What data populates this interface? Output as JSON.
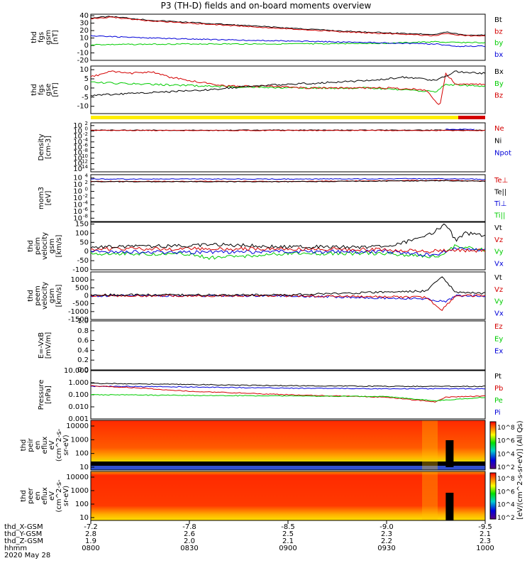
{
  "title": "P3 (TH-D) fields and on-board moments overview",
  "colors": {
    "black": "#000000",
    "red": "#d40000",
    "green": "#00cc00",
    "blue": "#0000d8",
    "yellow": "#ffee00",
    "white": "#ffffff"
  },
  "time_axis": {
    "ticks": [
      "0800",
      "0830",
      "0900",
      "0930",
      "1000"
    ],
    "range_hours": [
      8.0,
      10.0
    ]
  },
  "ephemeris": {
    "labels": [
      "thd_X-GSM",
      "thd_Y-GSM",
      "thd_Z-GSM",
      "hhmm",
      "2020 May 28"
    ],
    "rows": [
      [
        "-7.2",
        "-7.8",
        "-8.5",
        "-9.0",
        "-9.5"
      ],
      [
        "2.8",
        "2.6",
        "2.5",
        "2.3",
        "2.1"
      ],
      [
        "1.9",
        "2.0",
        "2.1",
        "2.2",
        "2.3"
      ]
    ]
  },
  "chart_data": [
    {
      "type": "line",
      "ylabel": [
        "thd",
        "fgs",
        "gsm",
        "[nT]"
      ],
      "ylim": [
        -20,
        42
      ],
      "yticks": [
        "40",
        "30",
        "20",
        "10",
        "0",
        "-10",
        "-20"
      ],
      "legend": [
        {
          "name": "Bt",
          "color": "#000000"
        },
        {
          "name": "bz",
          "color": "#d40000"
        },
        {
          "name": "by",
          "color": "#00cc00"
        },
        {
          "name": "bx",
          "color": "#0000d8"
        }
      ],
      "series": [
        {
          "name": "Bt",
          "color": "#000000",
          "x": [
            8.0,
            8.1,
            8.3,
            8.5,
            8.7,
            8.9,
            9.1,
            9.3,
            9.5,
            9.6,
            9.75,
            9.8,
            9.9,
            10.0
          ],
          "y": [
            37,
            39,
            34,
            31,
            28,
            25,
            22,
            19,
            17,
            16,
            15,
            18,
            14,
            14
          ]
        },
        {
          "name": "bz",
          "color": "#d40000",
          "x": [
            8.0,
            8.1,
            8.3,
            8.5,
            8.7,
            8.9,
            9.1,
            9.3,
            9.5,
            9.6,
            9.75,
            9.8,
            9.9,
            10.0
          ],
          "y": [
            36,
            38,
            33,
            30,
            27,
            24,
            21,
            18,
            16,
            15,
            13,
            16,
            13,
            13
          ]
        },
        {
          "name": "by",
          "color": "#00cc00",
          "x": [
            8.0,
            8.5,
            9.0,
            9.5,
            9.75,
            9.8,
            10.0
          ],
          "y": [
            1,
            2,
            2,
            3,
            5,
            4,
            4
          ]
        },
        {
          "name": "bx",
          "color": "#0000d8",
          "x": [
            8.0,
            8.3,
            8.6,
            9.0,
            9.4,
            9.75,
            9.85,
            10.0
          ],
          "y": [
            13,
            10,
            8,
            6,
            4,
            2,
            -1,
            -1
          ]
        }
      ]
    },
    {
      "type": "line",
      "ylabel": [
        "thd",
        "fgs",
        "gse",
        "[nT]"
      ],
      "ylim": [
        -14,
        12
      ],
      "yticks": [
        "10",
        "5",
        "0",
        "-5",
        "-10"
      ],
      "legend": [
        {
          "name": "Bx",
          "color": "#000000"
        },
        {
          "name": "By",
          "color": "#00cc00"
        },
        {
          "name": "Bz",
          "color": "#d40000"
        }
      ],
      "series": [
        {
          "name": "By",
          "color": "#00cc00",
          "x": [
            8.0,
            8.3,
            8.6,
            9.0,
            9.4,
            9.75,
            9.8,
            10.0
          ],
          "y": [
            3,
            2,
            1,
            0,
            0,
            -2,
            2,
            1
          ]
        },
        {
          "name": "Bz",
          "color": "#d40000",
          "x": [
            8.0,
            8.1,
            8.2,
            8.3,
            8.4,
            8.5,
            8.7,
            8.9,
            9.1,
            9.3,
            9.5,
            9.7,
            9.77,
            9.8,
            9.85,
            10.0
          ],
          "y": [
            6,
            9,
            8,
            9,
            6,
            4,
            1,
            1,
            0,
            0,
            0,
            -1,
            -10,
            8,
            2,
            2
          ]
        },
        {
          "name": "Bx",
          "color": "#000000",
          "x": [
            8.0,
            8.2,
            8.4,
            8.6,
            8.8,
            9.0,
            9.2,
            9.4,
            9.6,
            9.75,
            9.85,
            10.0
          ],
          "y": [
            -4,
            -3,
            -2,
            -1,
            1,
            2,
            3,
            4,
            6,
            4,
            9,
            8
          ]
        }
      ]
    },
    {
      "type": "line",
      "ylabel": [
        "Density",
        "[cm-3]"
      ],
      "ylim_log10": [
        -15,
        3
      ],
      "ytick_exponents": [
        "2",
        "0",
        "-2",
        "-4",
        "-6",
        "-8",
        "-10",
        "-12",
        "-14"
      ],
      "legend": [
        {
          "name": "Ne",
          "color": "#d40000"
        },
        {
          "name": "Ni",
          "color": "#000000"
        },
        {
          "name": "Npot",
          "color": "#0000d8"
        }
      ],
      "series": [
        {
          "name": "Ni",
          "color": "#000000",
          "x": [
            8.0,
            10.0
          ],
          "y_log10": [
            0.3,
            0.3
          ]
        },
        {
          "name": "Ne",
          "color": "#d40000",
          "x": [
            8.0,
            10.0
          ],
          "y_log10": [
            0.2,
            0.2
          ]
        },
        {
          "name": "Npot",
          "color": "#0000d8",
          "x": [
            9.8,
            9.95
          ],
          "y_log10": [
            0.6,
            0.6
          ]
        }
      ]
    },
    {
      "type": "line",
      "ylabel": [
        "mom3",
        "[eV]"
      ],
      "ylim_log10": [
        -9,
        5
      ],
      "ytick_exponents": [
        "4",
        "2",
        "0",
        "-2",
        "-4",
        "-6",
        "-8"
      ],
      "legend": [
        {
          "name": "Te⊥",
          "color": "#d40000"
        },
        {
          "name": "Te||",
          "color": "#000000"
        },
        {
          "name": "Ti⊥",
          "color": "#0000d8"
        },
        {
          "name": "Ti||",
          "color": "#00cc00"
        }
      ],
      "series": [
        {
          "name": "Ti⊥",
          "color": "#0000d8",
          "x": [
            8.0,
            9.0,
            9.8,
            10.0
          ],
          "y_log10": [
            3.7,
            3.7,
            3.8,
            3.6
          ]
        },
        {
          "name": "Te⊥",
          "color": "#d40000",
          "x": [
            8.0,
            9.0,
            9.8,
            10.0
          ],
          "y_log10": [
            3.0,
            3.0,
            3.3,
            3.1
          ]
        },
        {
          "name": "Te||",
          "color": "#000000",
          "x": [
            8.0,
            9.0,
            9.8,
            10.0
          ],
          "y_log10": [
            2.9,
            2.9,
            3.2,
            3.0
          ]
        }
      ]
    },
    {
      "type": "line",
      "ylabel": [
        "thd",
        "peim",
        "velocity",
        "gsm",
        "[km/s]"
      ],
      "ylim": [
        -100,
        160
      ],
      "yticks": [
        "150",
        "100",
        "50",
        "0",
        "-50",
        "-100"
      ],
      "legend": [
        {
          "name": "Vt",
          "color": "#000000"
        },
        {
          "name": "Vz",
          "color": "#d40000"
        },
        {
          "name": "Vy",
          "color": "#00cc00"
        },
        {
          "name": "Vx",
          "color": "#0000d8"
        }
      ],
      "series": [
        {
          "name": "Vy",
          "color": "#00cc00",
          "x": [
            8.0,
            8.5,
            8.6,
            9.0,
            9.5,
            9.75,
            9.85,
            10.0
          ],
          "y": [
            -10,
            -15,
            -35,
            -10,
            -10,
            -30,
            30,
            10
          ]
        },
        {
          "name": "Vx",
          "color": "#0000d8",
          "x": [
            8.0,
            8.5,
            9.0,
            9.5,
            9.75,
            9.85,
            10.0
          ],
          "y": [
            0,
            -5,
            0,
            0,
            -20,
            20,
            10
          ]
        },
        {
          "name": "Vz",
          "color": "#d40000",
          "x": [
            8.0,
            8.5,
            9.0,
            9.5,
            9.7,
            9.8,
            10.0
          ],
          "y": [
            15,
            15,
            15,
            10,
            0,
            5,
            5
          ]
        },
        {
          "name": "Vt",
          "color": "#000000",
          "x": [
            8.0,
            8.5,
            8.6,
            9.0,
            9.5,
            9.7,
            9.8,
            9.85,
            9.9,
            10.0
          ],
          "y": [
            25,
            30,
            40,
            25,
            25,
            80,
            150,
            60,
            100,
            90
          ]
        }
      ]
    },
    {
      "type": "line",
      "ylabel": [
        "thd",
        "peem",
        "velocity",
        "gsm",
        "[km/s]"
      ],
      "ylim": [
        -1500,
        1500
      ],
      "yticks": [
        "1000",
        "500",
        "0",
        "-500",
        "-1000",
        "-1500"
      ],
      "legend": [
        {
          "name": "Vt",
          "color": "#000000"
        },
        {
          "name": "Vz",
          "color": "#d40000"
        },
        {
          "name": "Vy",
          "color": "#00cc00"
        },
        {
          "name": "Vx",
          "color": "#0000d8"
        }
      ],
      "series": [
        {
          "name": "Vx",
          "color": "#0000d8",
          "x": [
            8.0,
            9.0,
            9.7,
            9.8,
            9.85,
            10.0
          ],
          "y": [
            0,
            0,
            -200,
            -400,
            0,
            0
          ]
        },
        {
          "name": "Vz",
          "color": "#d40000",
          "x": [
            8.0,
            9.0,
            9.7,
            9.78,
            9.85,
            10.0
          ],
          "y": [
            0,
            0,
            -100,
            -900,
            0,
            0
          ]
        },
        {
          "name": "Vt",
          "color": "#000000",
          "x": [
            8.0,
            9.0,
            9.7,
            9.78,
            9.85,
            10.0
          ],
          "y": [
            50,
            50,
            300,
            1200,
            200,
            150
          ]
        }
      ]
    },
    {
      "type": "line",
      "ylabel": [
        "E=-VxB",
        "[mV/m]"
      ],
      "ylim": [
        0,
        1
      ],
      "yticks": [
        "1.0",
        "0.8",
        "0.6",
        "0.4",
        "0.2",
        "0.0"
      ],
      "legend": [
        {
          "name": "Ez",
          "color": "#d40000"
        },
        {
          "name": "Ey",
          "color": "#00cc00"
        },
        {
          "name": "Ex",
          "color": "#0000d8"
        }
      ],
      "series": []
    },
    {
      "type": "line",
      "ylabel": [
        "Pressure",
        "[nPa]"
      ],
      "ylim_log10": [
        -3,
        1
      ],
      "yticks": [
        "10.000",
        "1.000",
        "0.100",
        "0.010",
        "0.001"
      ],
      "legend": [
        {
          "name": "Pt",
          "color": "#000000"
        },
        {
          "name": "Pb",
          "color": "#d40000"
        },
        {
          "name": "Pe",
          "color": "#00cc00"
        },
        {
          "name": "Pi",
          "color": "#0000d8"
        }
      ],
      "series": [
        {
          "name": "Pt",
          "color": "#000000",
          "x": [
            8.0,
            8.5,
            9.0,
            9.5,
            10.0
          ],
          "y_log10": [
            -0.05,
            -0.15,
            -0.25,
            -0.3,
            -0.3
          ]
        },
        {
          "name": "Pi",
          "color": "#0000d8",
          "x": [
            8.0,
            8.5,
            9.0,
            9.5,
            10.0
          ],
          "y_log10": [
            -0.3,
            -0.35,
            -0.45,
            -0.5,
            -0.5
          ]
        },
        {
          "name": "Pb",
          "color": "#d40000",
          "x": [
            8.0,
            8.2,
            8.5,
            9.0,
            9.5,
            9.75,
            9.8,
            10.0
          ],
          "y_log10": [
            -0.25,
            -0.4,
            -0.7,
            -1.0,
            -1.2,
            -1.6,
            -1.2,
            -1.1
          ]
        },
        {
          "name": "Pe",
          "color": "#00cc00",
          "x": [
            8.0,
            8.5,
            9.0,
            9.5,
            9.75,
            10.0
          ],
          "y_log10": [
            -1.0,
            -1.05,
            -1.1,
            -1.15,
            -1.5,
            -1.2
          ]
        }
      ]
    },
    {
      "type": "heatmap",
      "ylabel": [
        "thd",
        "peir",
        "en",
        "eflux",
        "eV",
        "(cm^2-s-",
        "sr-eV)"
      ],
      "yticks": [
        "10000",
        "1000",
        "100",
        "10"
      ],
      "colorbar_ticks": [
        "10^8",
        "10^6",
        "10^4",
        "10^2"
      ],
      "colorbar_label": "[eV/(cm^2-s-sr-eV)] (All Qs)"
    },
    {
      "type": "heatmap",
      "ylabel": [
        "thd",
        "peer",
        "en",
        "eflux",
        "eV",
        "(cm^2-s-",
        "sr-eV)"
      ],
      "yticks": [
        "10000",
        "1000",
        "100",
        "10"
      ],
      "colorbar_ticks": [
        "10^8",
        "10^6",
        "10^4",
        "10^2"
      ],
      "colorbar_label": "[eV/(cm^2-s-sr-eV)] (All Qs)"
    }
  ]
}
